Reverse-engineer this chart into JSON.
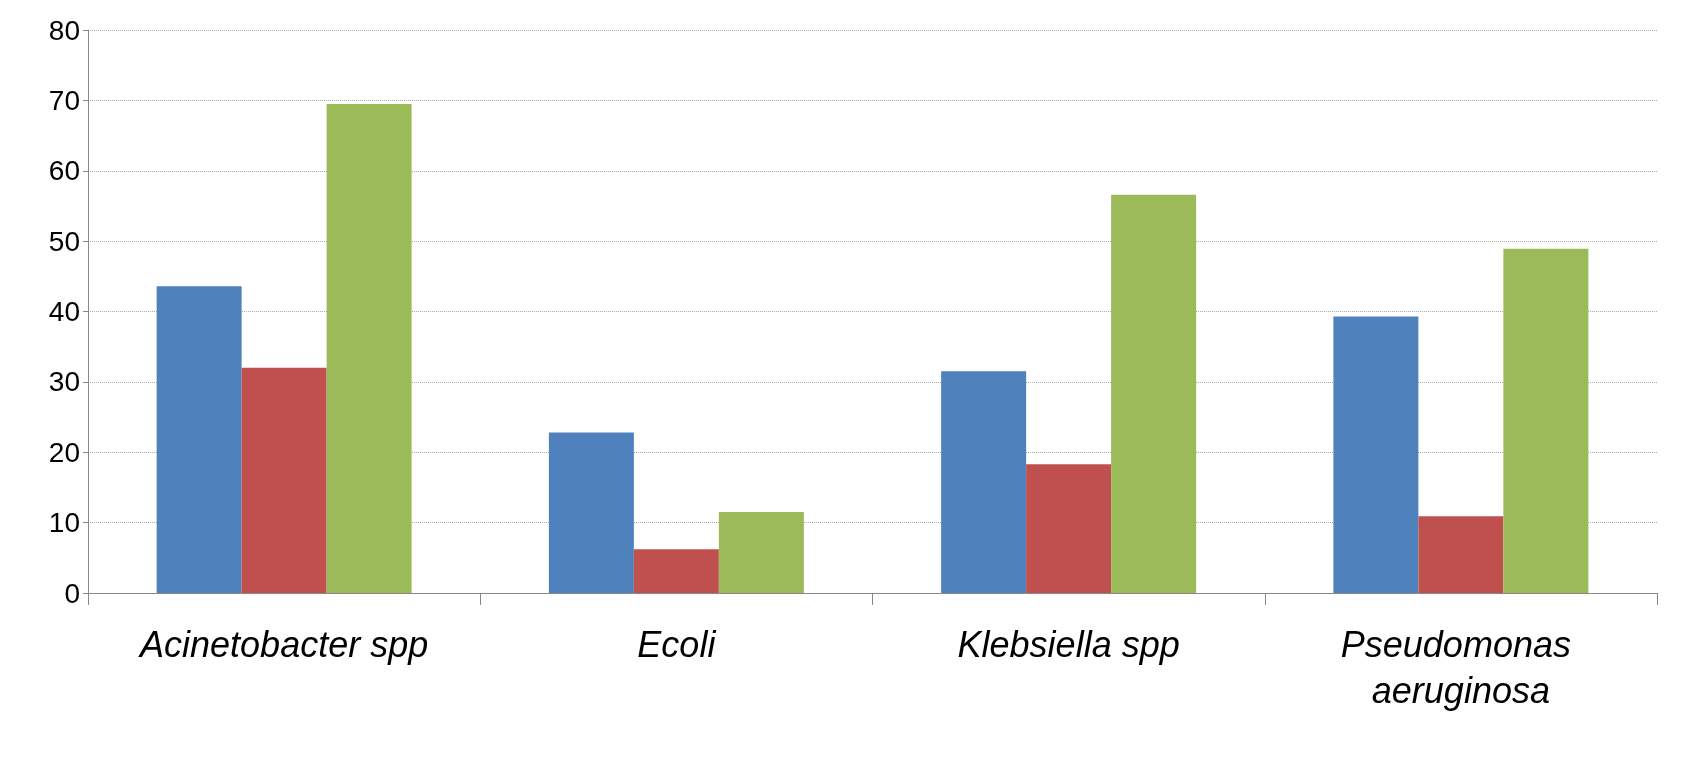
{
  "chart_data": {
    "type": "bar",
    "categories": [
      "Acinetobacter spp",
      "Ecoli",
      "Klebsiella spp",
      "Pseudomonas aeruginosa"
    ],
    "series": [
      {
        "color": "#4f81bd",
        "values": [
          43.6,
          22.8,
          31.5,
          39.3
        ]
      },
      {
        "color": "#c0504d",
        "values": [
          32.0,
          6.2,
          18.3,
          10.9
        ]
      },
      {
        "color": "#9bbb59",
        "values": [
          69.5,
          11.5,
          56.6,
          48.9
        ]
      }
    ],
    "ylim": [
      0,
      80
    ],
    "yticks": [
      0,
      10,
      20,
      30,
      40,
      50,
      60,
      70,
      80
    ],
    "grid": "y"
  }
}
